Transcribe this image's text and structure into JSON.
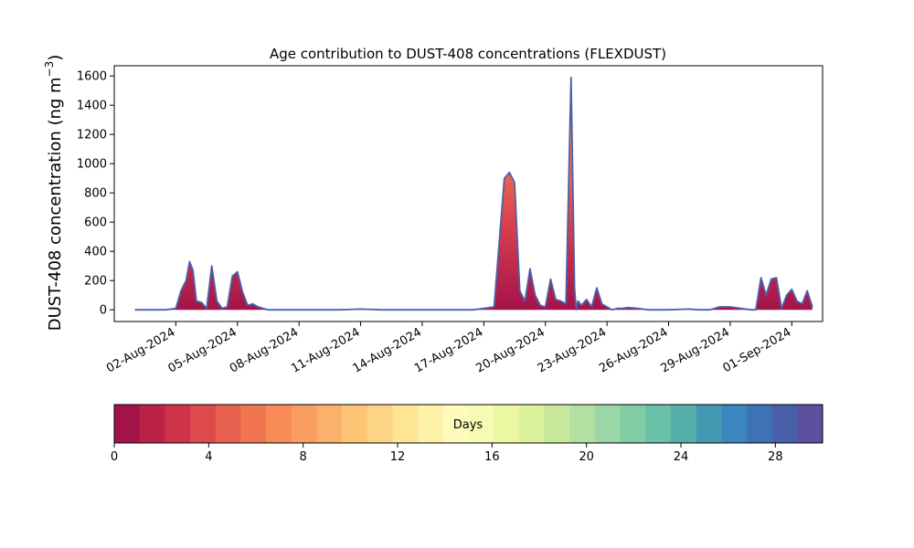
{
  "chart_data": {
    "type": "area",
    "title": "Age contribution to DUST-408 concentrations (FLEXDUST)",
    "ylabel_main": "DUST-408 concentration (ng m",
    "ylabel_sup": "−3",
    "ylabel_close": ")",
    "xlabel": "",
    "ylim": [
      -80,
      1670
    ],
    "xlim": [
      "2024-07-30T00:00",
      "2024-09-02T12:00"
    ],
    "yticks": [
      0,
      200,
      400,
      600,
      800,
      1000,
      1200,
      1400,
      1600
    ],
    "xticks": [
      {
        "date": "2024-08-02T00:00",
        "label": "02-Aug-2024"
      },
      {
        "date": "2024-08-05T00:00",
        "label": "05-Aug-2024"
      },
      {
        "date": "2024-08-08T00:00",
        "label": "08-Aug-2024"
      },
      {
        "date": "2024-08-11T00:00",
        "label": "11-Aug-2024"
      },
      {
        "date": "2024-08-14T00:00",
        "label": "14-Aug-2024"
      },
      {
        "date": "2024-08-17T00:00",
        "label": "17-Aug-2024"
      },
      {
        "date": "2024-08-20T00:00",
        "label": "20-Aug-2024"
      },
      {
        "date": "2024-08-23T00:00",
        "label": "23-Aug-2024"
      },
      {
        "date": "2024-08-26T00:00",
        "label": "26-Aug-2024"
      },
      {
        "date": "2024-08-29T00:00",
        "label": "29-Aug-2024"
      },
      {
        "date": "2024-09-01T00:00",
        "label": "01-Sep-2024"
      }
    ],
    "grid": false,
    "total_series": {
      "x": [
        "2024-07-31T00:00",
        "2024-08-01T00:00",
        "2024-08-01T12:00",
        "2024-08-02T00:00",
        "2024-08-02T06:00",
        "2024-08-02T12:00",
        "2024-08-02T16:00",
        "2024-08-02T20:00",
        "2024-08-03T00:00",
        "2024-08-03T06:00",
        "2024-08-03T12:00",
        "2024-08-03T18:00",
        "2024-08-04T00:00",
        "2024-08-04T06:00",
        "2024-08-04T12:00",
        "2024-08-04T18:00",
        "2024-08-05T00:00",
        "2024-08-05T06:00",
        "2024-08-05T12:00",
        "2024-08-05T18:00",
        "2024-08-06T00:00",
        "2024-08-06T12:00",
        "2024-08-07T00:00",
        "2024-08-07T12:00",
        "2024-08-08T00:00",
        "2024-08-09T00:00",
        "2024-08-10T00:00",
        "2024-08-11T00:00",
        "2024-08-12T00:00",
        "2024-08-13T00:00",
        "2024-08-14T00:00",
        "2024-08-15T00:00",
        "2024-08-16T00:00",
        "2024-08-16T12:00",
        "2024-08-17T00:00",
        "2024-08-17T12:00",
        "2024-08-18T00:00",
        "2024-08-18T06:00",
        "2024-08-18T12:00",
        "2024-08-18T18:00",
        "2024-08-19T00:00",
        "2024-08-19T06:00",
        "2024-08-19T12:00",
        "2024-08-19T18:00",
        "2024-08-20T00:00",
        "2024-08-20T06:00",
        "2024-08-20T12:00",
        "2024-08-20T18:00",
        "2024-08-21T00:00",
        "2024-08-21T06:00",
        "2024-08-21T10:00",
        "2024-08-21T12:00",
        "2024-08-21T14:00",
        "2024-08-21T18:00",
        "2024-08-22T00:00",
        "2024-08-22T06:00",
        "2024-08-22T12:00",
        "2024-08-22T18:00",
        "2024-08-23T00:00",
        "2024-08-23T06:00",
        "2024-08-23T12:00",
        "2024-08-23T18:00",
        "2024-08-24T00:00",
        "2024-08-24T12:00",
        "2024-08-25T00:00",
        "2024-08-26T00:00",
        "2024-08-27T00:00",
        "2024-08-27T12:00",
        "2024-08-28T00:00",
        "2024-08-28T12:00",
        "2024-08-29T00:00",
        "2024-08-30T00:00",
        "2024-08-30T06:00",
        "2024-08-30T12:00",
        "2024-08-30T18:00",
        "2024-08-31T00:00",
        "2024-08-31T06:00",
        "2024-08-31T12:00",
        "2024-08-31T18:00",
        "2024-09-01T00:00",
        "2024-09-01T06:00",
        "2024-09-01T12:00",
        "2024-09-01T18:00",
        "2024-09-02T00:00"
      ],
      "y": [
        0,
        0,
        0,
        10,
        130,
        200,
        330,
        270,
        60,
        50,
        10,
        300,
        60,
        10,
        20,
        230,
        260,
        120,
        30,
        40,
        20,
        0,
        0,
        0,
        0,
        0,
        0,
        5,
        0,
        0,
        0,
        0,
        0,
        0,
        10,
        20,
        900,
        940,
        870,
        130,
        60,
        280,
        100,
        30,
        20,
        210,
        70,
        60,
        40,
        1590,
        150,
        0,
        60,
        30,
        70,
        20,
        150,
        40,
        20,
        0,
        10,
        10,
        15,
        10,
        0,
        0,
        5,
        0,
        0,
        20,
        20,
        0,
        0,
        220,
        100,
        210,
        220,
        10,
        100,
        140,
        60,
        40,
        130,
        20
      ],
      "color": "#4b61a8"
    },
    "colorbar": {
      "label": "Days",
      "ticks": [
        0,
        4,
        8,
        12,
        16,
        20,
        24,
        28
      ],
      "range": [
        0,
        30
      ],
      "colors": [
        "#a3134a",
        "#bc2147",
        "#cd3347",
        "#dc4a4c",
        "#e8614f",
        "#f07651",
        "#f78a57",
        "#f99d61",
        "#fbb16c",
        "#fdc476",
        "#fdd485",
        "#fee594",
        "#fef1a8",
        "#fefbbd",
        "#f6fbb3",
        "#ebf7a1",
        "#dbf19a",
        "#c8e99c",
        "#b2e0a2",
        "#9ad6a6",
        "#81cca4",
        "#6ac0a6",
        "#56b0a9",
        "#4499b2",
        "#3987bc",
        "#3d72b6",
        "#4a5faa",
        "#5b4f9e"
      ]
    }
  }
}
